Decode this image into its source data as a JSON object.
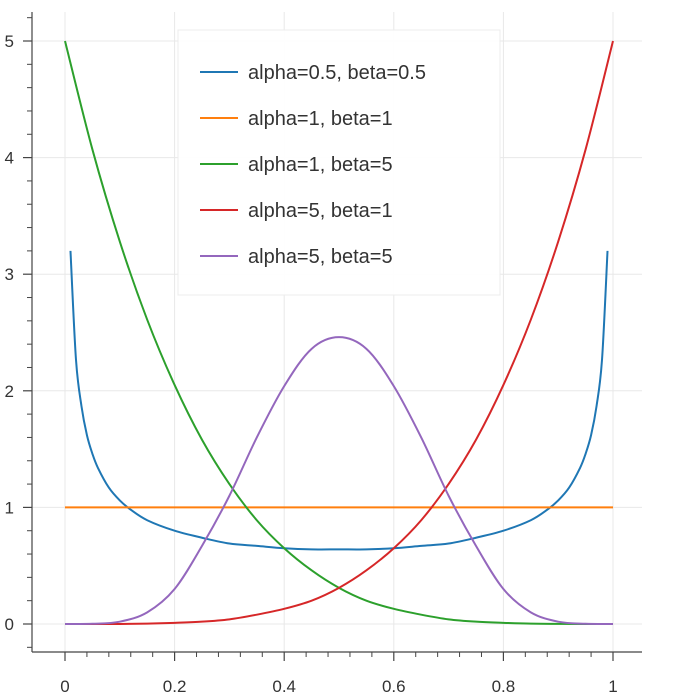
{
  "chart_data": {
    "type": "line",
    "title": "",
    "xlabel": "",
    "ylabel": "",
    "xlim": [
      0,
      1
    ],
    "ylim": [
      0,
      5
    ],
    "x_ticks": [
      "0",
      "0.2",
      "0.4",
      "0.6",
      "0.8",
      "1"
    ],
    "y_ticks": [
      "0",
      "1",
      "2",
      "3",
      "4",
      "5"
    ],
    "grid": true,
    "legend_position": "top-center",
    "series": [
      {
        "name": "alpha=0.5, beta=0.5",
        "color": "#1f77b4",
        "x": [
          0.01,
          0.02,
          0.03,
          0.04,
          0.05,
          0.06,
          0.08,
          0.1,
          0.12,
          0.15,
          0.2,
          0.25,
          0.3,
          0.35,
          0.4,
          0.45,
          0.5,
          0.55,
          0.6,
          0.65,
          0.7,
          0.75,
          0.8,
          0.85,
          0.88,
          0.9,
          0.92,
          0.94,
          0.95,
          0.96,
          0.97,
          0.98,
          0.99
        ],
        "y": [
          3.2,
          2.27,
          1.87,
          1.62,
          1.46,
          1.34,
          1.17,
          1.06,
          0.98,
          0.89,
          0.8,
          0.74,
          0.69,
          0.67,
          0.65,
          0.64,
          0.64,
          0.64,
          0.65,
          0.67,
          0.69,
          0.74,
          0.8,
          0.89,
          0.98,
          1.06,
          1.17,
          1.34,
          1.46,
          1.62,
          1.87,
          2.27,
          3.2
        ]
      },
      {
        "name": "alpha=1, beta=1",
        "color": "#ff7f0e",
        "x": [
          0,
          1
        ],
        "y": [
          1,
          1
        ]
      },
      {
        "name": "alpha=1, beta=5",
        "color": "#2ca02c",
        "x": [
          0,
          0.05,
          0.1,
          0.15,
          0.2,
          0.25,
          0.3,
          0.35,
          0.4,
          0.45,
          0.5,
          0.55,
          0.6,
          0.65,
          0.7,
          0.75,
          0.8,
          0.85,
          0.9,
          0.95,
          1
        ],
        "y": [
          5,
          4.07,
          3.28,
          2.61,
          2.05,
          1.58,
          1.2,
          0.89,
          0.65,
          0.46,
          0.31,
          0.2,
          0.13,
          0.08,
          0.04,
          0.02,
          0.01,
          0.003,
          0.001,
          0,
          0
        ]
      },
      {
        "name": "alpha=5, beta=1",
        "color": "#d62728",
        "x": [
          0,
          0.05,
          0.1,
          0.15,
          0.2,
          0.25,
          0.3,
          0.35,
          0.4,
          0.45,
          0.5,
          0.55,
          0.6,
          0.65,
          0.7,
          0.75,
          0.8,
          0.85,
          0.9,
          0.95,
          1
        ],
        "y": [
          0,
          0,
          0,
          0.003,
          0.01,
          0.02,
          0.04,
          0.08,
          0.13,
          0.2,
          0.31,
          0.46,
          0.65,
          0.89,
          1.2,
          1.58,
          2.05,
          2.61,
          3.28,
          4.07,
          5
        ]
      },
      {
        "name": "alpha=5, beta=5",
        "color": "#9467bd",
        "x": [
          0,
          0.05,
          0.1,
          0.15,
          0.2,
          0.25,
          0.3,
          0.35,
          0.4,
          0.45,
          0.5,
          0.55,
          0.6,
          0.65,
          0.7,
          0.75,
          0.8,
          0.85,
          0.9,
          0.95,
          1
        ],
        "y": [
          0,
          0.002,
          0.02,
          0.1,
          0.3,
          0.67,
          1.1,
          1.6,
          2.04,
          2.36,
          2.46,
          2.36,
          2.04,
          1.6,
          1.1,
          0.67,
          0.3,
          0.1,
          0.02,
          0.002,
          0
        ]
      }
    ]
  }
}
